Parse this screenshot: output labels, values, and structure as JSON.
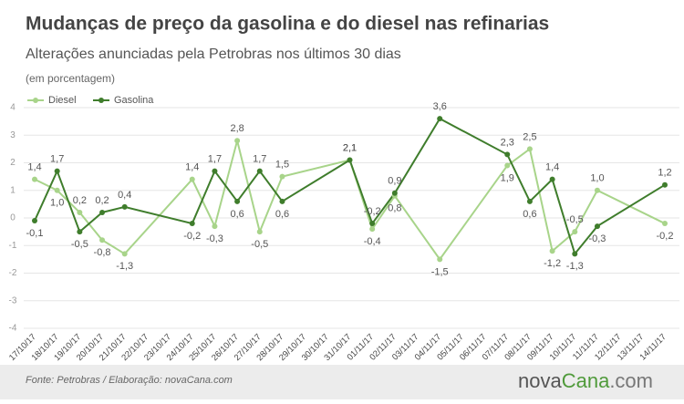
{
  "chart_data": {
    "type": "line",
    "title": "Mudanças de preço da gasolina e do diesel nas refinarias",
    "subtitle": "Alterações anunciadas pela Petrobras nos últimos 30 dias",
    "unit_note": "(em porcentagem)",
    "source": "Fonte: Petrobras  / Elaboração: novaCana.com",
    "logo": [
      "nova",
      "Cana",
      ".com"
    ],
    "categories": [
      "17/10/17",
      "18/10/17",
      "19/10/17",
      "20/10/17",
      "21/10/17",
      "22/10/17",
      "23/10/17",
      "24/10/17",
      "25/10/17",
      "26/10/17",
      "27/10/17",
      "28/10/17",
      "29/10/17",
      "30/10/17",
      "31/10/17",
      "01/11/17",
      "02/11/17",
      "03/11/17",
      "04/11/17",
      "05/11/17",
      "06/11/17",
      "07/11/17",
      "08/11/17",
      "09/11/17",
      "10/11/17",
      "11/11/17",
      "12/11/17",
      "13/11/17",
      "14/11/17"
    ],
    "x": [
      "17/10/17",
      "18/10/17",
      "19/10/17",
      "20/10/17",
      "21/10/17",
      "24/10/17",
      "25/10/17",
      "26/10/17",
      "27/10/17",
      "28/10/17",
      "31/10/17",
      "01/11/17",
      "02/11/17",
      "04/11/17",
      "07/11/17",
      "08/11/17",
      "09/11/17",
      "10/11/17",
      "11/11/17",
      "14/11/17"
    ],
    "series": [
      {
        "name": "Diesel",
        "color": "#a8d48a",
        "values": [
          1.4,
          1.0,
          0.2,
          -0.8,
          -1.3,
          1.4,
          -0.3,
          2.8,
          -0.5,
          1.5,
          2.1,
          -0.4,
          0.8,
          -1.5,
          1.9,
          2.5,
          -1.2,
          -0.5,
          1.0,
          -0.2
        ],
        "value_labels": [
          "1,4",
          "1,0",
          "0,2",
          "-0,8",
          "-1,3",
          "1,4",
          "-0,3",
          "2,8",
          "-0,5",
          "1,5",
          "2,1",
          "-0,4",
          "0,8",
          "-1,5",
          "1,9",
          "2,5",
          "-1,2",
          "-0,5",
          "1,0",
          "-0,2"
        ]
      },
      {
        "name": "Gasolina",
        "color": "#3f7d2c",
        "values": [
          -0.1,
          1.7,
          -0.5,
          0.2,
          0.4,
          -0.2,
          1.7,
          0.6,
          1.7,
          0.6,
          2.1,
          -0.2,
          0.9,
          3.6,
          2.3,
          0.6,
          1.4,
          -1.3,
          -0.3,
          1.2
        ],
        "value_labels": [
          "-0,1",
          "1,7",
          "-0,5",
          "0,2",
          "0,4",
          "-0,2",
          "1,7",
          "0,6",
          "1,7",
          "0,6",
          "2,1",
          "-0,2",
          "0,9",
          "3,6",
          "2,3",
          "0,6",
          "1,4",
          "-1,3",
          "-0,3",
          "1,2"
        ]
      }
    ],
    "ylim": [
      -4,
      4
    ],
    "yticks": [
      -4,
      -3,
      -2,
      -1,
      0,
      1,
      2,
      3,
      4
    ],
    "grid": true,
    "legend": "top-left"
  }
}
